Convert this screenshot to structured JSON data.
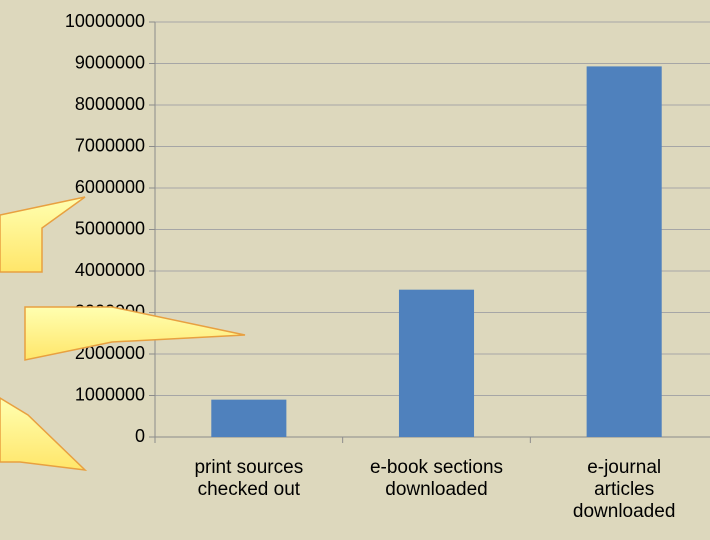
{
  "chart_data": {
    "type": "bar",
    "categories": [
      "print sources checked out",
      "e-book sections downloaded",
      "e-journal articles downloaded"
    ],
    "values": [
      900000,
      3550000,
      8930000
    ],
    "color": "#4f81bd",
    "ylim": [
      0,
      10000000
    ],
    "yticks": [
      0,
      1000000,
      2000000,
      3000000,
      4000000,
      5000000,
      6000000,
      7000000,
      8000000,
      9000000,
      10000000
    ],
    "grid": true
  }
}
